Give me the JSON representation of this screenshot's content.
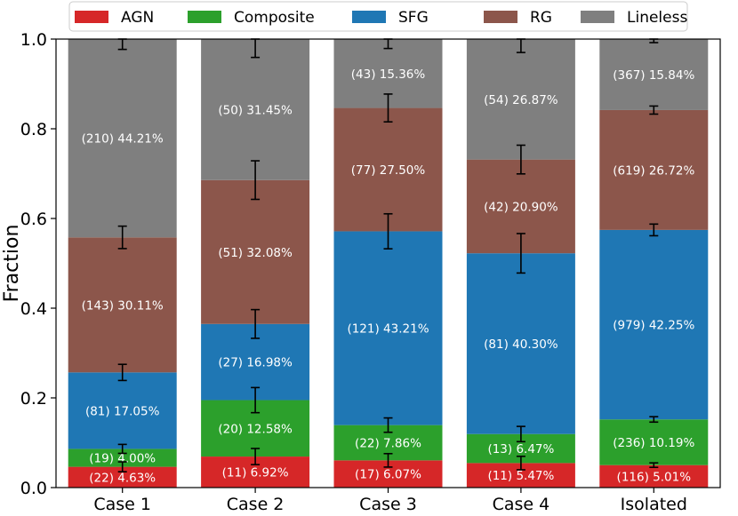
{
  "chart_data": {
    "type": "bar",
    "stacked": true,
    "categories": [
      "Case 1",
      "Case 2",
      "Case 3",
      "Case 4",
      "Isolated"
    ],
    "ylabel": "Fraction",
    "xlabel": "",
    "ylim": [
      0,
      1.0
    ],
    "yticks": [
      "0.0",
      "0.2",
      "0.4",
      "0.6",
      "0.8",
      "1.0"
    ],
    "legend_position": "top",
    "series": [
      {
        "name": "AGN",
        "color": "#d62728",
        "values": [
          0.0463,
          0.0692,
          0.0607,
          0.0547,
          0.0501
        ],
        "labels": [
          "(22)  4.63%",
          "(11)  6.92%",
          "(17)  6.07%",
          "(11)  5.47%",
          "(116)  5.01%"
        ],
        "errors": [
          0.011,
          0.018,
          0.015,
          0.015,
          0.005
        ]
      },
      {
        "name": "Composite",
        "color": "#2ca02c",
        "values": [
          0.04,
          0.1258,
          0.0786,
          0.0647,
          0.1019
        ],
        "labels": [
          "(19)  4.00%",
          "(20)  12.58%",
          "(22)  7.86%",
          "(13)  6.47%",
          "(236)  10.19%"
        ],
        "errors": [
          0.01,
          0.028,
          0.016,
          0.017,
          0.006
        ]
      },
      {
        "name": "SFG",
        "color": "#1f77b4",
        "values": [
          0.1705,
          0.1698,
          0.4321,
          0.403,
          0.4225
        ],
        "labels": [
          "(81)  17.05%",
          "(27)  16.98%",
          "(121)  43.21%",
          "(81)  40.30%",
          "(979)  42.25%"
        ],
        "errors": [
          0.018,
          0.032,
          0.039,
          0.044,
          0.013
        ]
      },
      {
        "name": "RG",
        "color": "#8c564b",
        "values": [
          0.3011,
          0.3208,
          0.275,
          0.209,
          0.2672
        ],
        "labels": [
          "(143)  30.11%",
          "(51)  32.08%",
          "(77)  27.50%",
          "(42)  20.90%",
          "(619)  26.72%"
        ],
        "errors": [
          0.025,
          0.043,
          0.031,
          0.032,
          0.009
        ]
      },
      {
        "name": "Lineless",
        "color": "#7f7f7f",
        "values": [
          0.4421,
          0.3145,
          0.1536,
          0.2687,
          0.1584
        ],
        "labels": [
          "(210)  44.21%",
          "(50)  31.45%",
          "(43)  15.36%",
          "(54)  26.87%",
          "(367)  15.84%"
        ],
        "errors": [
          0.023,
          0.041,
          0.021,
          0.03,
          0.008
        ]
      }
    ]
  }
}
